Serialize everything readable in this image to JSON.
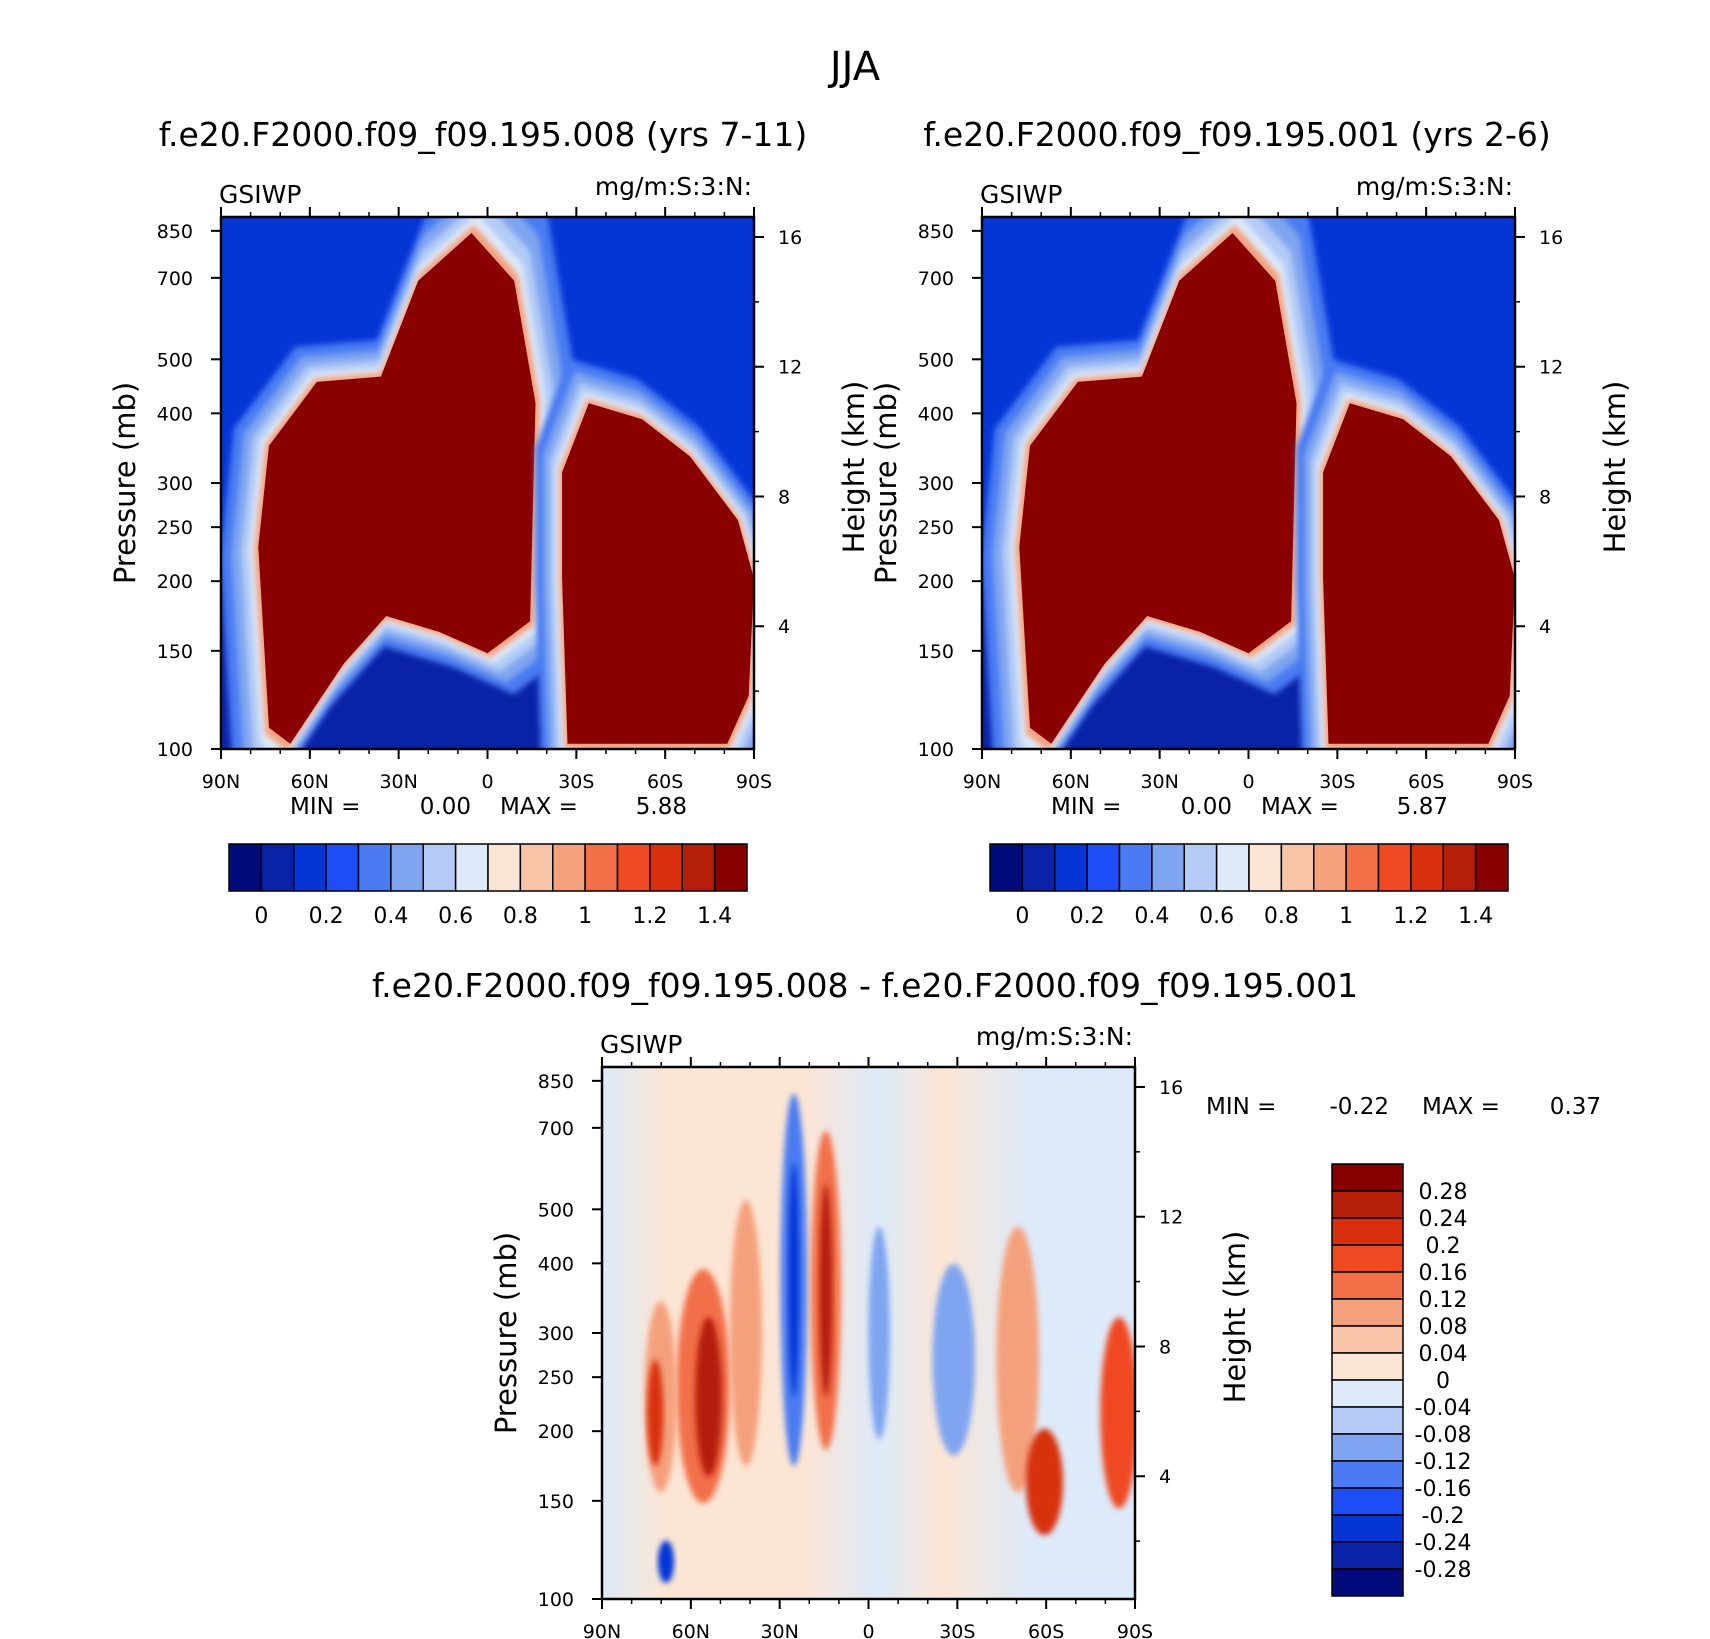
{
  "figure": {
    "title": "JJA"
  },
  "chart_data": [
    {
      "type": "heatmap",
      "title": "f.e20.F2000.f09_f09.195.008 (yrs 7-11)",
      "left_label": "GSIWP",
      "right_label": "mg/m:S:3:N:",
      "ylabel": "Pressure (mb)",
      "ylabel_right": "Height (km)",
      "x_ticks": [
        "90N",
        "60N",
        "30N",
        "0",
        "30S",
        "60S",
        "90S"
      ],
      "x_range": [
        90,
        -90
      ],
      "y_ticks": [
        100,
        150,
        200,
        250,
        300,
        400,
        500,
        700,
        850
      ],
      "y_range": [
        900,
        100
      ],
      "y_scale": "log",
      "y_ticks_right": [
        16,
        12,
        8,
        4
      ],
      "min_label": "MIN =",
      "min_value": "0.00",
      "max_label": "MAX =",
      "max_value": "5.88",
      "colorbar": {
        "orientation": "horizontal",
        "labels": [
          "0",
          "0.2",
          "0.4",
          "0.6",
          "0.8",
          "1",
          "1.2",
          "1.4"
        ],
        "colors": [
          "#000a7a",
          "#0a22a8",
          "#0635d6",
          "#1e4cf5",
          "#4a7bf2",
          "#7fa5f0",
          "#b3cbf6",
          "#ddeaf9",
          "#fbe5d4",
          "#f8c4a8",
          "#f5a07c",
          "#f26f48",
          "#f04a22",
          "#d8300e",
          "#b51e08",
          "#8a0000"
        ]
      }
    },
    {
      "type": "heatmap",
      "title": "f.e20.F2000.f09_f09.195.001 (yrs 2-6)",
      "left_label": "GSIWP",
      "right_label": "mg/m:S:3:N:",
      "ylabel": "Pressure (mb)",
      "ylabel_right": "Height (km)",
      "x_ticks": [
        "90N",
        "60N",
        "30N",
        "0",
        "30S",
        "60S",
        "90S"
      ],
      "x_range": [
        90,
        -90
      ],
      "y_ticks": [
        100,
        150,
        200,
        250,
        300,
        400,
        500,
        700,
        850
      ],
      "y_range": [
        900,
        100
      ],
      "y_scale": "log",
      "y_ticks_right": [
        16,
        12,
        8,
        4
      ],
      "min_label": "MIN =",
      "min_value": "0.00",
      "max_label": "MAX =",
      "max_value": "5.87",
      "colorbar": {
        "orientation": "horizontal",
        "labels": [
          "0",
          "0.2",
          "0.4",
          "0.6",
          "0.8",
          "1",
          "1.2",
          "1.4"
        ],
        "colors": [
          "#000a7a",
          "#0a22a8",
          "#0635d6",
          "#1e4cf5",
          "#4a7bf2",
          "#7fa5f0",
          "#b3cbf6",
          "#ddeaf9",
          "#fbe5d4",
          "#f8c4a8",
          "#f5a07c",
          "#f26f48",
          "#f04a22",
          "#d8300e",
          "#b51e08",
          "#8a0000"
        ]
      }
    },
    {
      "type": "heatmap",
      "title": "f.e20.F2000.f09_f09.195.008 - f.e20.F2000.f09_f09.195.001",
      "left_label": "GSIWP",
      "right_label": "mg/m:S:3:N:",
      "ylabel": "Pressure (mb)",
      "ylabel_right": "Height (km)",
      "x_ticks": [
        "90N",
        "60N",
        "30N",
        "0",
        "30S",
        "60S",
        "90S"
      ],
      "x_range": [
        90,
        -90
      ],
      "y_ticks": [
        100,
        150,
        200,
        250,
        300,
        400,
        500,
        700,
        850
      ],
      "y_range": [
        900,
        100
      ],
      "y_scale": "log",
      "y_ticks_right": [
        16,
        12,
        8,
        4
      ],
      "min_label": "MIN =",
      "min_value": "-0.22",
      "max_label": "MAX =",
      "max_value": "0.37",
      "colorbar": {
        "orientation": "vertical",
        "labels": [
          "0.28",
          "0.24",
          "0.2",
          "0.16",
          "0.12",
          "0.08",
          "0.04",
          "0",
          "-0.04",
          "-0.08",
          "-0.12",
          "-0.16",
          "-0.2",
          "-0.24",
          "-0.28"
        ],
        "colors": [
          "#8a0000",
          "#b51e08",
          "#d8300e",
          "#f04a22",
          "#f26f48",
          "#f5a07c",
          "#f8c4a8",
          "#fbe5d4",
          "#ddeaf9",
          "#b3cbf6",
          "#7fa5f0",
          "#4a7bf2",
          "#1e4cf5",
          "#0635d6",
          "#0a22a8",
          "#000a7a"
        ]
      }
    }
  ]
}
